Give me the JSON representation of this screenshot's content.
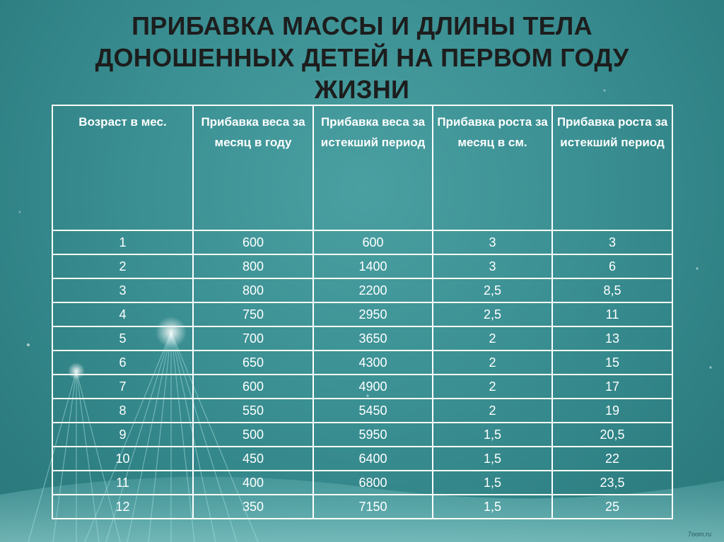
{
  "slide": {
    "title": "ПРИБАВКА МАССЫ И ДЛИНЫ ТЕЛА\nДОНОШЕННЫХ ДЕТЕЙ НА ПЕРВОМ ГОДУ\nЖИЗНИ",
    "watermark": "7oom.ru"
  },
  "table": {
    "headers": [
      "Возраст в мес.",
      "Прибавка веса за месяц в году",
      "Прибавка веса за истекший период",
      "Прибавка роста за месяц в см.",
      "Прибавка роста за истекший период"
    ],
    "rows": [
      [
        "1",
        "600",
        "600",
        "3",
        "3"
      ],
      [
        "2",
        "800",
        "1400",
        "3",
        "6"
      ],
      [
        "3",
        "800",
        "2200",
        "2,5",
        "8,5"
      ],
      [
        "4",
        "750",
        "2950",
        "2,5",
        "11"
      ],
      [
        "5",
        "700",
        "3650",
        "2",
        "13"
      ],
      [
        "6",
        "650",
        "4300",
        "2",
        "15"
      ],
      [
        "7",
        "600",
        "4900",
        "2",
        "17"
      ],
      [
        "8",
        "550",
        "5450",
        "2",
        "19"
      ],
      [
        "9",
        "500",
        "5950",
        "1,5",
        "20,5"
      ],
      [
        "10",
        "450",
        "6400",
        "1,5",
        "22"
      ],
      [
        "11",
        "400",
        "6800",
        "1,5",
        "23,5"
      ],
      [
        "12",
        "350",
        "7150",
        "1,5",
        "25"
      ]
    ]
  },
  "colors": {
    "background": "#3a8f92",
    "title_text": "#1d1d1d",
    "table_text": "#ffffff",
    "table_border": "#ffffff"
  }
}
